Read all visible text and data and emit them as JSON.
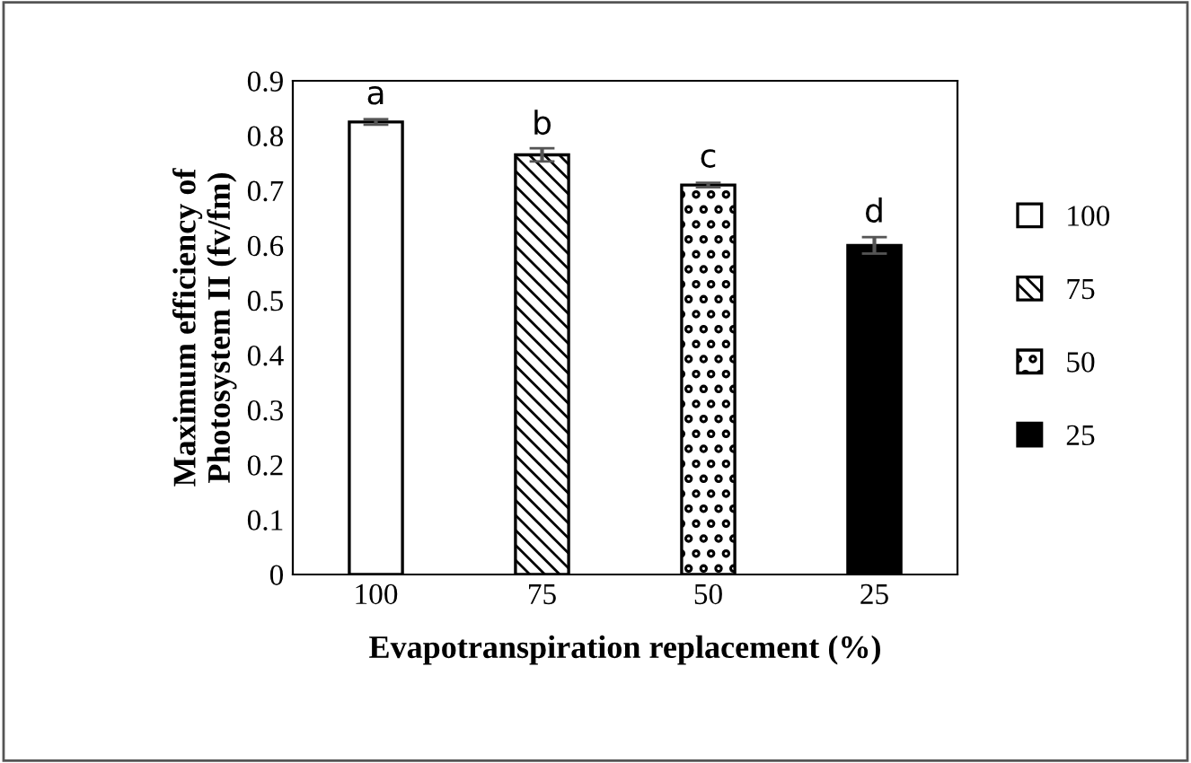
{
  "chart_data": {
    "type": "bar",
    "xlabel": "Evapotranspiration replacement (%)",
    "ylabel": "Maximum efficiency of\nPhotosystem II (fv/fm)",
    "categories": [
      "100",
      "75",
      "50",
      "25"
    ],
    "series": [
      {
        "name": "100",
        "color": "#ffffff",
        "values": [
          0.825,
          null,
          null,
          null
        ],
        "errors": [
          0.005,
          null,
          null,
          null
        ]
      },
      {
        "name": "75",
        "color": "#000000",
        "values": [
          null,
          0.765,
          null,
          null
        ],
        "errors": [
          null,
          0.012,
          null,
          null
        ]
      },
      {
        "name": "50",
        "color": "#000000",
        "values": [
          null,
          null,
          0.71,
          null
        ],
        "errors": [
          null,
          null,
          0.004,
          null
        ]
      },
      {
        "name": "25",
        "color": "#000000",
        "values": [
          null,
          null,
          null,
          0.6
        ],
        "errors": [
          null,
          null,
          null,
          0.015
        ]
      }
    ],
    "annotations": [
      {
        "text": "a",
        "x": "100",
        "y": 0.845
      },
      {
        "text": "b",
        "x": "75",
        "y": 0.79
      },
      {
        "text": "c",
        "x": "50",
        "y": 0.73
      },
      {
        "text": "d",
        "x": "25",
        "y": 0.63
      }
    ],
    "ylim": [
      0,
      0.9
    ],
    "yticks": [
      0,
      0.1,
      0.2,
      0.3,
      0.4,
      0.5,
      0.6,
      0.7,
      0.8,
      0.9
    ],
    "grid": false,
    "legend": "right"
  }
}
